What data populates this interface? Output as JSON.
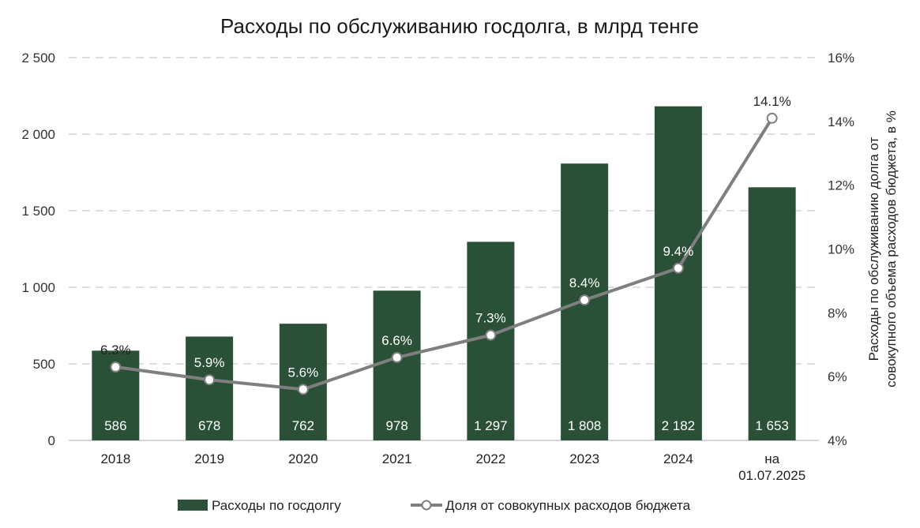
{
  "chart_data": {
    "type": "bar+line",
    "title": "Расходы по обслуживанию госдолга, в млрд тенге",
    "categories": [
      [
        "2018"
      ],
      [
        "2019"
      ],
      [
        "2020"
      ],
      [
        "2021"
      ],
      [
        "2022"
      ],
      [
        "2023"
      ],
      [
        "2024"
      ],
      [
        "на",
        "01.07.2025"
      ]
    ],
    "bar_series": {
      "name": "Расходы по госдолгу",
      "values": [
        586,
        678,
        762,
        978,
        1297,
        1808,
        2182,
        1653
      ],
      "labels": [
        "586",
        "678",
        "762",
        "978",
        "1 297",
        "1 808",
        "2 182",
        "1 653"
      ],
      "color": "#2a5038"
    },
    "line_series": {
      "name": "Доля от совокупных расходов бюджета",
      "values": [
        6.3,
        5.9,
        5.6,
        6.6,
        7.3,
        8.4,
        9.4,
        14.1
      ],
      "labels": [
        "6.3%",
        "5.9%",
        "5.6%",
        "6.6%",
        "7.3%",
        "8.4%",
        "9.4%",
        "14.1%"
      ],
      "color": "#7f7f7f"
    },
    "y_left": {
      "range": [
        0,
        2500
      ],
      "ticks": [
        0,
        500,
        1000,
        1500,
        2000,
        2500
      ],
      "tick_labels": [
        "0",
        "500",
        "1 000",
        "1 500",
        "2 000",
        "2 500"
      ]
    },
    "y_right": {
      "range": [
        4,
        16
      ],
      "ticks": [
        4,
        6,
        8,
        10,
        12,
        14,
        16
      ],
      "tick_labels": [
        "4%",
        "6%",
        "8%",
        "10%",
        "12%",
        "14%",
        "16%"
      ],
      "label_lines": [
        "Расходы по обслуживанию долга от",
        "совокупного объема  расходов бюджета, в %"
      ]
    },
    "grid": true,
    "legend_position": "bottom"
  }
}
